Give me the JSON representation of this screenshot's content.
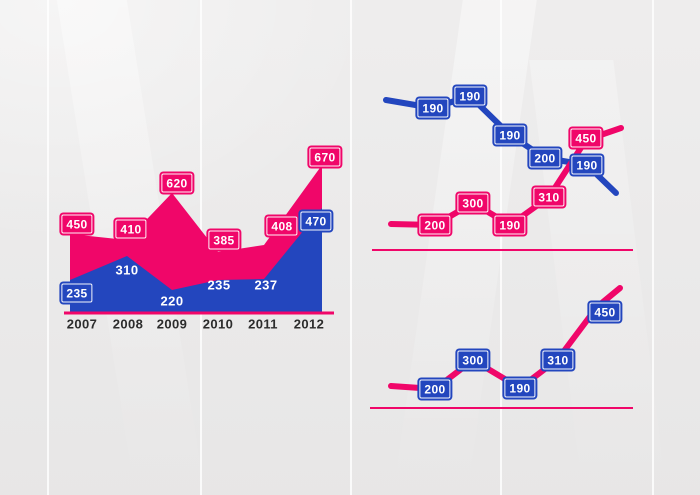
{
  "colors": {
    "pink": "#F00669",
    "blue": "#2346BE",
    "axis_line": "#F00669",
    "year_text": "#2C2C2C",
    "background": "#ECEBEB"
  },
  "chart_data": [
    {
      "type": "area",
      "title": "",
      "categories": [
        "2007",
        "2008",
        "2009",
        "2010",
        "2011",
        "2012"
      ],
      "series": [
        {
          "name": "pink-area",
          "color": "#F00669",
          "values": [
            450,
            410,
            620,
            385,
            408,
            670
          ],
          "label_style": "pink-badge"
        },
        {
          "name": "blue-area",
          "color": "#2346BE",
          "values": [
            235,
            310,
            220,
            235,
            237,
            470
          ],
          "label_style": "blue-badge-endpoints-white-text-interior"
        }
      ],
      "baseline_color": "#F00669",
      "grid": false,
      "legend": "none"
    },
    {
      "type": "line",
      "title": "",
      "series": [
        {
          "name": "blue-line",
          "color": "#2346BE",
          "values": [
            190,
            190,
            190,
            200,
            190
          ],
          "trend": "declining",
          "label_style": "blue-badge"
        },
        {
          "name": "pink-line",
          "color": "#F00669",
          "values": [
            200,
            300,
            190,
            310,
            450
          ],
          "trend": "rising",
          "label_style": "pink-badge"
        }
      ],
      "baseline_color": "#F00669",
      "grid": false,
      "legend": "none"
    },
    {
      "type": "line",
      "title": "",
      "series": [
        {
          "name": "pink-line",
          "color": "#F00669",
          "values": [
            200,
            300,
            190,
            310,
            450
          ],
          "trend": "rising",
          "label_style": "blue-badge"
        }
      ],
      "baseline_color": "#F00669",
      "grid": false,
      "legend": "none"
    }
  ]
}
